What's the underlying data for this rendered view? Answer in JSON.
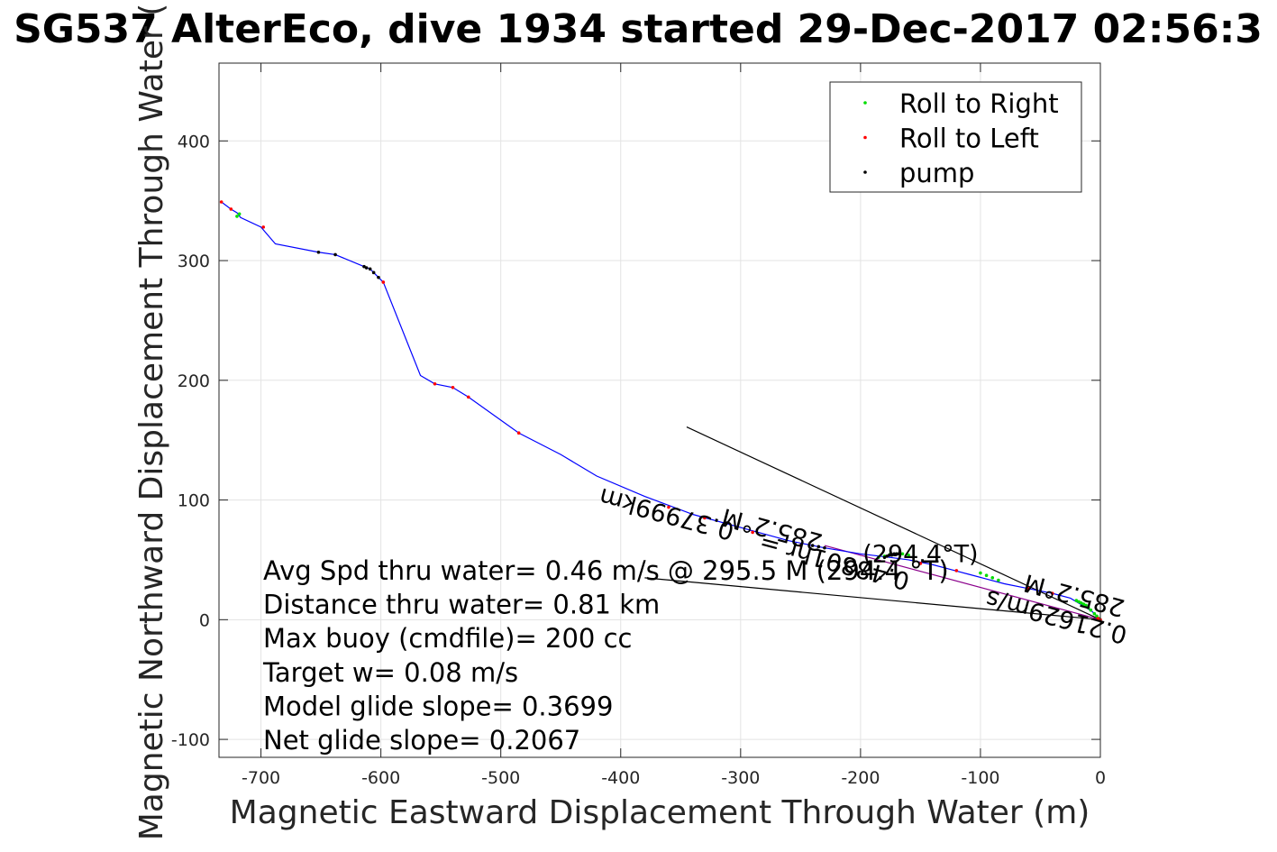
{
  "chart_data": {
    "type": "line",
    "title": "SG537 AlterEco, dive 1934 started 29-Dec-2017 02:56:3",
    "xlabel": "Magnetic Eastward Displacement Through Water (m)",
    "ylabel": "Magnetic Northward Displacement Through Water (",
    "xlim": [
      -735,
      0
    ],
    "ylim": [
      -115,
      465
    ],
    "xticks": [
      -700,
      -600,
      -500,
      -400,
      -300,
      -200,
      -100,
      0
    ],
    "yticks": [
      -100,
      0,
      100,
      200,
      300,
      400
    ],
    "grid": true,
    "legend_position": "top-right",
    "legend": [
      {
        "label": "Roll to Right",
        "color": "#00dd00"
      },
      {
        "label": "Roll to Left",
        "color": "#ff0000"
      },
      {
        "label": "pump",
        "color": "#000000"
      }
    ],
    "track": {
      "name": "",
      "color": "#0000ff",
      "x": [
        0,
        -7,
        -15,
        -25,
        -40,
        -60,
        -80,
        -95,
        -110,
        -125,
        -140,
        -160,
        -175,
        -200,
        -230,
        -260,
        -300,
        -340,
        -380,
        -420,
        -450,
        -485,
        -527,
        -540,
        -555,
        -567,
        -598,
        -602,
        -606,
        -609,
        -614,
        -638,
        -652,
        -688,
        -700,
        -717,
        -720,
        -725,
        -733
      ],
      "y": [
        0,
        7,
        12,
        18,
        22,
        26,
        30,
        34,
        38,
        42,
        46,
        50,
        52,
        55,
        60,
        66,
        77,
        88,
        103,
        120,
        138,
        156,
        186,
        194,
        197,
        204,
        282,
        286,
        290,
        293,
        295,
        305,
        307,
        314,
        328,
        336,
        340,
        343,
        349
      ]
    },
    "roll_right": {
      "color": "#00dd00",
      "x": [
        -1,
        -3,
        -5,
        -8,
        -10,
        -12,
        -14,
        -16,
        -18,
        -20,
        -85,
        -90,
        -95,
        -100,
        -160,
        -165,
        -170,
        -175,
        -180,
        -185,
        -720,
        -718
      ],
      "y": [
        1,
        3,
        5,
        8,
        10,
        12,
        13,
        14,
        15,
        16,
        33,
        35,
        37,
        39,
        54,
        55,
        55,
        55,
        53,
        52,
        337,
        339
      ]
    },
    "roll_left": {
      "color": "#ff0000",
      "x": [
        0,
        -2,
        -40,
        -60,
        -120,
        -150,
        -250,
        -290,
        -330,
        -360,
        -485,
        -527,
        -540,
        -555,
        -598,
        -698,
        -725,
        -733
      ],
      "y": [
        0,
        1,
        22,
        26,
        41,
        47,
        62,
        73,
        85,
        94,
        156,
        186,
        194,
        197,
        282,
        328,
        343,
        349
      ]
    },
    "pump": {
      "color": "#000000",
      "x": [
        -180,
        -178,
        -176,
        -174,
        -172,
        -170,
        -168,
        -230,
        -235,
        -240,
        -602,
        -606,
        -609,
        -612,
        -614,
        -638,
        -652
      ],
      "y": [
        52,
        53,
        54,
        54,
        55,
        55,
        55,
        60,
        61,
        62,
        286,
        290,
        293,
        294,
        295,
        305,
        307
      ]
    },
    "vectors": [
      {
        "color": "#000000",
        "x": [
          0,
          -345
        ],
        "y": [
          0,
          161
        ]
      },
      {
        "color": "#000000",
        "x": [
          0,
          -380
        ],
        "y": [
          0,
          35
        ]
      },
      {
        "color": "#8b008b",
        "x": [
          0,
          -230
        ],
        "y": [
          0,
          62
        ]
      }
    ],
    "vector_labels": [
      {
        "text": "0.37999km",
        "x": -360,
        "y": 95,
        "angle": 195
      },
      {
        "text": "285.2°M",
        "x": -272,
        "y": 82,
        "angle": 195
      },
      {
        "text": "0.48801hr =",
        "x": -220,
        "y": 55,
        "angle": 195
      },
      {
        "text": "0.21629m/s",
        "x": -35,
        "y": 9,
        "angle": 195
      },
      {
        "text": "285.2°M",
        "x": -20,
        "y": 27,
        "angle": 195
      },
      {
        "text": "(294.4°T)",
        "x": -150,
        "y": 48,
        "angle": 0
      }
    ],
    "annotations": [
      "Avg Spd thru water=  0.46 m/s @ 295.5   M (294.4 °T)",
      "Distance thru water=  0.81 km",
      "Max buoy (cmdfile)= 200 cc",
      "Target w= 0.08 m/s",
      "Model glide slope= 0.3699",
      "Net glide slope= 0.2067"
    ]
  }
}
